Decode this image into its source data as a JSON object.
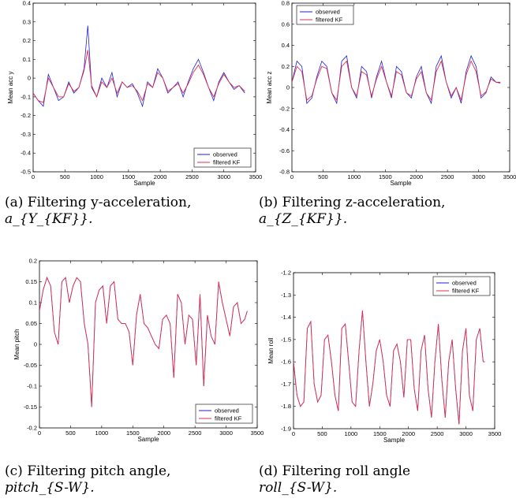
{
  "captions": [
    {
      "line1": "(a)  Filtering  y-acceleration,",
      "line2": "a_{Y_{KF}}."
    },
    {
      "line1": "(b)  Filtering  z-acceleration,",
      "line2": "a_{Z_{KF}}."
    },
    {
      "line1": "(c)  Filtering  pitch  angle,",
      "line2": "pitch_{S-W}."
    },
    {
      "line1": "(d)  Filtering  roll  angle",
      "line2": "roll_{S-W}."
    }
  ],
  "chart_data": [
    {
      "type": "line",
      "xlabel": "Sample",
      "ylabel": "Mean acc y",
      "xlim": [
        0,
        3500
      ],
      "ylim": [
        -0.5,
        0.4
      ],
      "xticks": [
        0,
        500,
        1000,
        1500,
        2000,
        2500,
        3000,
        3500
      ],
      "yticks": [
        -0.5,
        -0.4,
        -0.3,
        -0.2,
        -0.1,
        0,
        0.1,
        0.2,
        0.3,
        0.4
      ],
      "legend_position": "bottom-right",
      "colors": {
        "observed": "#1f1fd6",
        "filtered": "#e0304a"
      },
      "series": [
        {
          "name": "observed",
          "x": [
            0,
            80,
            160,
            240,
            320,
            400,
            480,
            560,
            640,
            720,
            800,
            860,
            920,
            1000,
            1080,
            1160,
            1240,
            1320,
            1400,
            1480,
            1560,
            1640,
            1720,
            1800,
            1880,
            1960,
            2040,
            2120,
            2200,
            2280,
            2360,
            2440,
            2520,
            2600,
            2680,
            2760,
            2840,
            2920,
            3000,
            3080,
            3160,
            3240,
            3330
          ],
          "y": [
            -0.08,
            -0.12,
            -0.15,
            0.02,
            -0.05,
            -0.12,
            -0.1,
            -0.02,
            -0.08,
            -0.05,
            0.05,
            0.28,
            -0.05,
            -0.1,
            0.0,
            -0.05,
            0.03,
            -0.1,
            -0.02,
            -0.05,
            -0.03,
            -0.08,
            -0.15,
            -0.02,
            -0.05,
            0.05,
            0.0,
            -0.08,
            -0.05,
            -0.02,
            -0.1,
            -0.02,
            0.05,
            0.1,
            0.03,
            -0.05,
            -0.12,
            -0.02,
            0.03,
            -0.02,
            -0.06,
            -0.04,
            -0.08
          ]
        },
        {
          "name": "filtered KF",
          "x": [
            0,
            80,
            160,
            240,
            320,
            400,
            480,
            560,
            640,
            720,
            800,
            860,
            920,
            1000,
            1080,
            1160,
            1240,
            1320,
            1400,
            1480,
            1560,
            1640,
            1720,
            1800,
            1880,
            1960,
            2040,
            2120,
            2200,
            2280,
            2360,
            2440,
            2520,
            2600,
            2680,
            2760,
            2840,
            2920,
            3000,
            3080,
            3160,
            3240,
            3330
          ],
          "y": [
            -0.08,
            -0.12,
            -0.13,
            0.0,
            -0.05,
            -0.1,
            -0.1,
            -0.03,
            -0.07,
            -0.05,
            0.04,
            0.15,
            -0.04,
            -0.1,
            -0.02,
            -0.05,
            0.0,
            -0.08,
            -0.02,
            -0.05,
            -0.04,
            -0.07,
            -0.12,
            -0.03,
            -0.05,
            0.03,
            0.0,
            -0.07,
            -0.05,
            -0.03,
            -0.08,
            -0.03,
            0.03,
            0.07,
            0.02,
            -0.05,
            -0.1,
            -0.03,
            0.02,
            -0.02,
            -0.05,
            -0.04,
            -0.07
          ]
        }
      ]
    },
    {
      "type": "line",
      "xlabel": "Sample",
      "ylabel": "Mean acc z",
      "xlim": [
        0,
        3500
      ],
      "ylim": [
        -0.8,
        0.8
      ],
      "xticks": [
        0,
        500,
        1000,
        1500,
        2000,
        2500,
        3000,
        3500
      ],
      "yticks": [
        -0.8,
        -0.6,
        -0.4,
        -0.2,
        0,
        0.2,
        0.4,
        0.6,
        0.8
      ],
      "legend_position": "top-left",
      "colors": {
        "observed": "#1f1fd6",
        "filtered": "#e0304a"
      },
      "series": [
        {
          "name": "observed",
          "x": [
            0,
            80,
            160,
            240,
            320,
            400,
            480,
            560,
            640,
            720,
            800,
            880,
            960,
            1040,
            1120,
            1200,
            1280,
            1360,
            1440,
            1520,
            1600,
            1680,
            1760,
            1840,
            1920,
            2000,
            2080,
            2160,
            2240,
            2320,
            2400,
            2480,
            2560,
            2640,
            2720,
            2800,
            2880,
            2960,
            3040,
            3120,
            3200,
            3280,
            3350
          ],
          "y": [
            0.05,
            0.25,
            0.2,
            -0.15,
            -0.1,
            0.1,
            0.25,
            0.2,
            -0.05,
            -0.15,
            0.25,
            0.3,
            0.0,
            -0.1,
            0.2,
            0.15,
            -0.1,
            0.1,
            0.25,
            0.05,
            -0.1,
            0.2,
            0.15,
            -0.05,
            -0.1,
            0.1,
            0.2,
            -0.05,
            -0.15,
            0.2,
            0.3,
            0.05,
            -0.1,
            0.0,
            -0.15,
            0.15,
            0.3,
            0.2,
            -0.1,
            -0.05,
            0.1,
            0.05,
            0.05
          ]
        },
        {
          "name": "filtered KF",
          "x": [
            0,
            80,
            160,
            240,
            320,
            400,
            480,
            560,
            640,
            720,
            800,
            880,
            960,
            1040,
            1120,
            1200,
            1280,
            1360,
            1440,
            1520,
            1600,
            1680,
            1760,
            1840,
            1920,
            2000,
            2080,
            2160,
            2240,
            2320,
            2400,
            2480,
            2560,
            2640,
            2720,
            2800,
            2880,
            2960,
            3040,
            3120,
            3200,
            3280,
            3350
          ],
          "y": [
            0.05,
            0.2,
            0.15,
            -0.12,
            -0.08,
            0.08,
            0.2,
            0.18,
            -0.05,
            -0.12,
            0.2,
            0.25,
            0.0,
            -0.08,
            0.15,
            0.12,
            -0.08,
            0.08,
            0.2,
            0.05,
            -0.08,
            0.15,
            0.12,
            -0.05,
            -0.08,
            0.08,
            0.15,
            -0.05,
            -0.12,
            0.15,
            0.25,
            0.05,
            -0.08,
            0.0,
            -0.12,
            0.12,
            0.25,
            0.15,
            -0.08,
            -0.04,
            0.08,
            0.05,
            0.04
          ]
        }
      ]
    },
    {
      "type": "line",
      "xlabel": "Sample",
      "ylabel": "Mean pitch",
      "xlim": [
        0,
        3500
      ],
      "ylim": [
        -0.2,
        0.2
      ],
      "xticks": [
        0,
        500,
        1000,
        1500,
        2000,
        2500,
        3000,
        3500
      ],
      "yticks": [
        -0.2,
        -0.15,
        -0.1,
        -0.05,
        0,
        0.05,
        0.1,
        0.15,
        0.2
      ],
      "legend_position": "bottom-right",
      "colors": {
        "observed": "#1f1fd6",
        "filtered": "#e0304a"
      },
      "series": [
        {
          "name": "observed",
          "x": [
            0,
            60,
            120,
            180,
            240,
            300,
            360,
            420,
            480,
            540,
            600,
            660,
            720,
            780,
            840,
            900,
            960,
            1020,
            1080,
            1140,
            1200,
            1260,
            1320,
            1380,
            1440,
            1500,
            1560,
            1620,
            1680,
            1740,
            1800,
            1860,
            1920,
            1980,
            2040,
            2100,
            2160,
            2220,
            2280,
            2340,
            2400,
            2460,
            2520,
            2580,
            2640,
            2700,
            2760,
            2820,
            2880,
            2940,
            3000,
            3060,
            3120,
            3180,
            3240,
            3300,
            3340
          ],
          "y": [
            0.08,
            0.13,
            0.16,
            0.14,
            0.03,
            0.0,
            0.15,
            0.16,
            0.1,
            0.14,
            0.16,
            0.15,
            0.05,
            0.0,
            -0.15,
            0.1,
            0.13,
            0.14,
            0.05,
            0.14,
            0.15,
            0.06,
            0.05,
            0.05,
            0.03,
            -0.05,
            0.07,
            0.12,
            0.05,
            0.04,
            0.02,
            0.0,
            -0.01,
            0.06,
            0.07,
            0.05,
            -0.08,
            0.12,
            0.1,
            0.0,
            0.07,
            0.06,
            -0.05,
            0.12,
            -0.1,
            0.07,
            0.02,
            0.0,
            0.15,
            0.1,
            0.06,
            0.02,
            0.09,
            0.1,
            0.05,
            0.06,
            0.08
          ]
        },
        {
          "name": "filtered KF",
          "x": [
            0,
            60,
            120,
            180,
            240,
            300,
            360,
            420,
            480,
            540,
            600,
            660,
            720,
            780,
            840,
            900,
            960,
            1020,
            1080,
            1140,
            1200,
            1260,
            1320,
            1380,
            1440,
            1500,
            1560,
            1620,
            1680,
            1740,
            1800,
            1860,
            1920,
            1980,
            2040,
            2100,
            2160,
            2220,
            2280,
            2340,
            2400,
            2460,
            2520,
            2580,
            2640,
            2700,
            2760,
            2820,
            2880,
            2940,
            3000,
            3060,
            3120,
            3180,
            3240,
            3300,
            3340
          ],
          "y": [
            0.08,
            0.13,
            0.16,
            0.14,
            0.03,
            0.0,
            0.15,
            0.16,
            0.1,
            0.14,
            0.16,
            0.15,
            0.05,
            0.0,
            -0.15,
            0.1,
            0.13,
            0.14,
            0.05,
            0.14,
            0.15,
            0.06,
            0.05,
            0.05,
            0.03,
            -0.05,
            0.07,
            0.12,
            0.05,
            0.04,
            0.02,
            0.0,
            -0.01,
            0.06,
            0.07,
            0.05,
            -0.08,
            0.12,
            0.1,
            0.0,
            0.07,
            0.06,
            -0.05,
            0.12,
            -0.1,
            0.07,
            0.02,
            0.0,
            0.15,
            0.1,
            0.06,
            0.02,
            0.09,
            0.1,
            0.05,
            0.06,
            0.08
          ]
        }
      ]
    },
    {
      "type": "line",
      "xlabel": "Sample",
      "ylabel": "Mean roll",
      "xlim": [
        0,
        3500
      ],
      "ylim": [
        -1.9,
        -1.2
      ],
      "xticks": [
        0,
        500,
        1000,
        1500,
        2000,
        2500,
        3000,
        3500
      ],
      "yticks": [
        -1.9,
        -1.8,
        -1.7,
        -1.6,
        -1.5,
        -1.4,
        -1.3,
        -1.2
      ],
      "legend_position": "top-right",
      "colors": {
        "observed": "#1f1fd6",
        "filtered": "#e0304a"
      },
      "series": [
        {
          "name": "observed",
          "x": [
            0,
            60,
            120,
            180,
            240,
            300,
            360,
            420,
            480,
            540,
            600,
            660,
            720,
            780,
            840,
            900,
            960,
            1020,
            1080,
            1140,
            1200,
            1260,
            1320,
            1380,
            1440,
            1500,
            1560,
            1620,
            1680,
            1740,
            1800,
            1860,
            1920,
            1980,
            2040,
            2100,
            2160,
            2220,
            2280,
            2340,
            2400,
            2460,
            2520,
            2580,
            2640,
            2700,
            2760,
            2820,
            2880,
            2940,
            3000,
            3060,
            3120,
            3180,
            3240,
            3300,
            3330
          ],
          "y": [
            -1.6,
            -1.75,
            -1.8,
            -1.78,
            -1.45,
            -1.42,
            -1.7,
            -1.78,
            -1.75,
            -1.5,
            -1.48,
            -1.6,
            -1.75,
            -1.82,
            -1.45,
            -1.43,
            -1.6,
            -1.78,
            -1.8,
            -1.55,
            -1.37,
            -1.6,
            -1.8,
            -1.7,
            -1.55,
            -1.5,
            -1.6,
            -1.75,
            -1.8,
            -1.55,
            -1.52,
            -1.6,
            -1.76,
            -1.5,
            -1.5,
            -1.72,
            -1.82,
            -1.55,
            -1.48,
            -1.72,
            -1.85,
            -1.6,
            -1.43,
            -1.68,
            -1.85,
            -1.6,
            -1.5,
            -1.72,
            -1.88,
            -1.55,
            -1.45,
            -1.75,
            -1.82,
            -1.5,
            -1.45,
            -1.6,
            -1.6
          ]
        },
        {
          "name": "filtered KF",
          "x": [
            0,
            60,
            120,
            180,
            240,
            300,
            360,
            420,
            480,
            540,
            600,
            660,
            720,
            780,
            840,
            900,
            960,
            1020,
            1080,
            1140,
            1200,
            1260,
            1320,
            1380,
            1440,
            1500,
            1560,
            1620,
            1680,
            1740,
            1800,
            1860,
            1920,
            1980,
            2040,
            2100,
            2160,
            2220,
            2280,
            2340,
            2400,
            2460,
            2520,
            2580,
            2640,
            2700,
            2760,
            2820,
            2880,
            2940,
            3000,
            3060,
            3120,
            3180,
            3240,
            3300,
            3330
          ],
          "y": [
            -1.6,
            -1.75,
            -1.8,
            -1.78,
            -1.45,
            -1.42,
            -1.7,
            -1.78,
            -1.75,
            -1.5,
            -1.48,
            -1.6,
            -1.75,
            -1.82,
            -1.45,
            -1.43,
            -1.6,
            -1.78,
            -1.8,
            -1.55,
            -1.37,
            -1.6,
            -1.8,
            -1.7,
            -1.55,
            -1.5,
            -1.6,
            -1.75,
            -1.8,
            -1.55,
            -1.52,
            -1.6,
            -1.76,
            -1.5,
            -1.5,
            -1.72,
            -1.82,
            -1.55,
            -1.48,
            -1.72,
            -1.85,
            -1.6,
            -1.43,
            -1.68,
            -1.85,
            -1.6,
            -1.5,
            -1.72,
            -1.88,
            -1.55,
            -1.45,
            -1.75,
            -1.82,
            -1.5,
            -1.45,
            -1.6,
            -1.6
          ]
        }
      ]
    }
  ]
}
